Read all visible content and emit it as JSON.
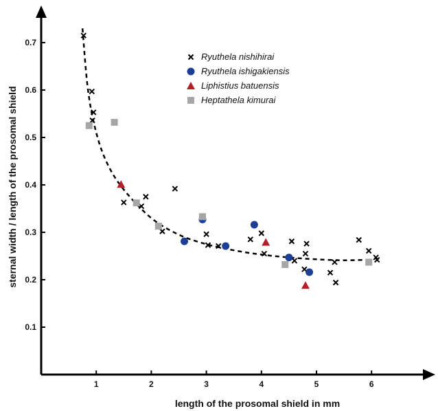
{
  "chart_data": {
    "type": "scatter",
    "title": "",
    "xlabel": "length of the prosomal shield in mm",
    "ylabel": "sternal width / length of the prosomal shield",
    "xlim": [
      0,
      6.9
    ],
    "ylim": [
      0,
      0.77
    ],
    "xticks": [
      1,
      2,
      3,
      4,
      5,
      6
    ],
    "yticks": [
      0.1,
      0.2,
      0.3,
      0.4,
      0.5,
      0.6,
      0.7
    ],
    "xtick_labels": [
      "1",
      "2",
      "3",
      "4",
      "5",
      "6"
    ],
    "ytick_labels": [
      "0.1",
      "0.2",
      "0.3",
      "0.4",
      "0.5",
      "0.6",
      "0.7"
    ],
    "grid": false,
    "legend_position": "top-center",
    "series": [
      {
        "name": "Ryuthela nishihirai",
        "marker": "x",
        "color": "#000000",
        "points": [
          [
            0.77,
            0.715
          ],
          [
            0.92,
            0.597
          ],
          [
            0.95,
            0.553
          ],
          [
            0.93,
            0.536
          ],
          [
            1.5,
            0.363
          ],
          [
            1.82,
            0.355
          ],
          [
            1.9,
            0.375
          ],
          [
            2.2,
            0.302
          ],
          [
            2.43,
            0.392
          ],
          [
            3.0,
            0.296
          ],
          [
            3.03,
            0.273
          ],
          [
            3.22,
            0.271
          ],
          [
            3.8,
            0.285
          ],
          [
            4.0,
            0.298
          ],
          [
            4.05,
            0.255
          ],
          [
            4.55,
            0.281
          ],
          [
            4.6,
            0.24
          ],
          [
            4.78,
            0.222
          ],
          [
            4.8,
            0.255
          ],
          [
            4.82,
            0.276
          ],
          [
            5.25,
            0.215
          ],
          [
            5.33,
            0.237
          ],
          [
            5.35,
            0.194
          ],
          [
            5.77,
            0.284
          ],
          [
            5.95,
            0.261
          ],
          [
            6.08,
            0.247
          ],
          [
            6.1,
            0.242
          ]
        ]
      },
      {
        "name": "Ryuthela ishigakiensis",
        "marker": "circle",
        "color": "#1c3f94",
        "points": [
          [
            2.6,
            0.281
          ],
          [
            2.93,
            0.327
          ],
          [
            3.35,
            0.271
          ],
          [
            3.87,
            0.316
          ],
          [
            4.5,
            0.247
          ],
          [
            4.87,
            0.216
          ]
        ]
      },
      {
        "name": "Liphistius batuensis",
        "marker": "triangle",
        "color": "#b22028",
        "points": [
          [
            1.45,
            0.401
          ],
          [
            4.08,
            0.279
          ],
          [
            4.8,
            0.188
          ]
        ]
      },
      {
        "name": "Heptathela kimurai",
        "marker": "square",
        "color": "#a6a6a6",
        "points": [
          [
            0.87,
            0.525
          ],
          [
            1.33,
            0.532
          ],
          [
            1.73,
            0.362
          ],
          [
            2.13,
            0.313
          ],
          [
            2.93,
            0.333
          ],
          [
            4.43,
            0.232
          ],
          [
            5.95,
            0.237
          ]
        ]
      }
    ],
    "trend_curve": {
      "style": "dashed",
      "color": "#000000",
      "points": [
        [
          0.75,
          0.73
        ],
        [
          0.85,
          0.6
        ],
        [
          1.0,
          0.51
        ],
        [
          1.2,
          0.445
        ],
        [
          1.5,
          0.39
        ],
        [
          2.0,
          0.33
        ],
        [
          2.5,
          0.295
        ],
        [
          3.0,
          0.275
        ],
        [
          3.5,
          0.262
        ],
        [
          4.0,
          0.253
        ],
        [
          4.5,
          0.247
        ],
        [
          5.0,
          0.243
        ],
        [
          5.5,
          0.241
        ],
        [
          5.95,
          0.242
        ]
      ]
    }
  }
}
